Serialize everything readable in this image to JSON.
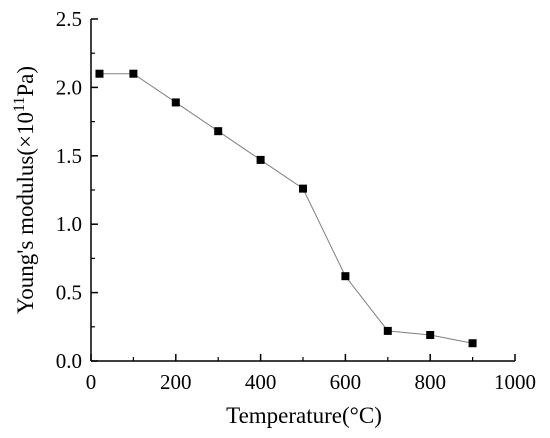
{
  "chart_data": {
    "type": "line",
    "title": "",
    "xlabel": "Temperature(°C)",
    "ylabel": {
      "main": "Young's modulus(×10",
      "superscript": "11",
      "unit": "Pa)"
    },
    "xlim": [
      0,
      1000
    ],
    "ylim": [
      0.0,
      2.5
    ],
    "xticks": [
      0,
      200,
      400,
      600,
      800,
      1000
    ],
    "xtick_labels": [
      "0",
      "200",
      "400",
      "600",
      "800",
      "1000"
    ],
    "yticks": [
      0.0,
      0.5,
      1.0,
      1.5,
      2.0,
      2.5
    ],
    "ytick_labels": [
      "0.0",
      "0.5",
      "1.0",
      "1.5",
      "2.0",
      "2.5"
    ],
    "grid": false,
    "series": [
      {
        "marker": "square",
        "color": "#000000",
        "line_color": "#7f7f7f",
        "x": [
          20,
          100,
          200,
          300,
          400,
          500,
          600,
          700,
          800,
          900
        ],
        "y": [
          2.1,
          2.1,
          1.89,
          1.68,
          1.47,
          1.26,
          0.62,
          0.22,
          0.19,
          0.13
        ]
      }
    ]
  }
}
